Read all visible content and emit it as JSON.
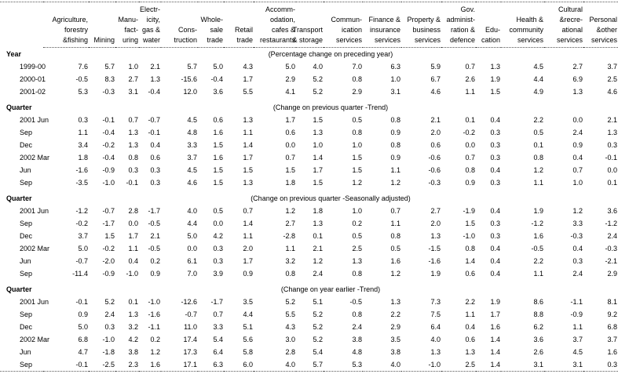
{
  "table": {
    "columns": [
      {
        "id": "agriculture-forestry-fishing",
        "label": "Agriculture,\nforestry\n&fishing"
      },
      {
        "id": "mining",
        "label": "Mining"
      },
      {
        "id": "manufacturing",
        "label": "Manu-\nfact-\nuring"
      },
      {
        "id": "electricity-gas-water",
        "label": "Electr-\nicity,\ngas &\nwater"
      },
      {
        "id": "construction",
        "label": "Cons-\ntruction"
      },
      {
        "id": "wholesale-trade",
        "label": "Whole-\nsale\ntrade"
      },
      {
        "id": "retail-trade",
        "label": "Retail\ntrade"
      },
      {
        "id": "accommodation-cafes-restaurants",
        "label": "Accomm-\nodation,\ncafes &\nrestaurants"
      },
      {
        "id": "transport-storage",
        "label": "Transport\n& storage"
      },
      {
        "id": "communication-services",
        "label": "Commun-\nication\nservices"
      },
      {
        "id": "finance-insurance-services",
        "label": "Finance &\ninsurance\nservices"
      },
      {
        "id": "property-business-services",
        "label": "Property &\nbusiness\nservices"
      },
      {
        "id": "gov-administration-defence",
        "label": "Gov.\nadminist-\nration &\ndefence"
      },
      {
        "id": "education",
        "label": "Edu-\ncation"
      },
      {
        "id": "health-community-services",
        "label": "Health &\ncommunity\nservices"
      },
      {
        "id": "cultural-recreational-services",
        "label": "Cultural\n&recre-\national\nservices"
      },
      {
        "id": "personal-other-services",
        "label": "Personal\n&other\nservices"
      }
    ],
    "sections": [
      {
        "label": "Year",
        "subtitle": "(Percentage change on preceding year)",
        "rows": [
          {
            "label": "1999-00",
            "values": [
              "7.6",
              "5.7",
              "1.0",
              "2.1",
              "5.7",
              "5.0",
              "4.3",
              "5.0",
              "4.0",
              "7.0",
              "6.3",
              "5.9",
              "0.7",
              "1.3",
              "4.5",
              "2.7",
              "3.7"
            ]
          },
          {
            "label": "2000-01",
            "values": [
              "-0.5",
              "8.3",
              "2.7",
              "1.3",
              "-15.6",
              "-0.4",
              "1.7",
              "2.9",
              "5.2",
              "0.8",
              "1.0",
              "6.7",
              "2.6",
              "1.9",
              "4.4",
              "6.9",
              "2.5"
            ]
          },
          {
            "label": "2001-02",
            "values": [
              "5.3",
              "-0.3",
              "3.1",
              "-0.4",
              "12.0",
              "3.6",
              "5.5",
              "4.1",
              "5.2",
              "2.9",
              "3.1",
              "4.6",
              "1.1",
              "1.5",
              "4.9",
              "1.3",
              "4.6"
            ]
          }
        ]
      },
      {
        "label": "Quarter",
        "subtitle": "(Change on previous quarter -Trend)",
        "rows": [
          {
            "label": "2001 Jun",
            "values": [
              "0.3",
              "-0.1",
              "0.7",
              "-0.7",
              "4.5",
              "0.6",
              "1.3",
              "1.7",
              "1.5",
              "0.5",
              "0.8",
              "2.1",
              "0.1",
              "0.4",
              "2.2",
              "0.0",
              "2.1"
            ]
          },
          {
            "label": "Sep",
            "values": [
              "1.1",
              "-0.4",
              "1.3",
              "-0.1",
              "4.8",
              "1.6",
              "1.1",
              "0.6",
              "1.3",
              "0.8",
              "0.9",
              "2.0",
              "-0.2",
              "0.3",
              "0.5",
              "2.4",
              "1.3"
            ]
          },
          {
            "label": "Dec",
            "values": [
              "3.4",
              "-0.2",
              "1.3",
              "0.4",
              "3.3",
              "1.5",
              "1.4",
              "0.0",
              "1.0",
              "1.0",
              "0.8",
              "0.6",
              "0.0",
              "0.3",
              "0.1",
              "0.9",
              "0.3"
            ]
          },
          {
            "label": "2002 Mar",
            "values": [
              "1.8",
              "-0.4",
              "0.8",
              "0.6",
              "3.7",
              "1.6",
              "1.7",
              "0.7",
              "1.4",
              "1.5",
              "0.9",
              "-0.6",
              "0.7",
              "0.3",
              "0.8",
              "0.4",
              "-0.1"
            ]
          },
          {
            "label": "Jun",
            "values": [
              "-1.6",
              "-0.9",
              "0.3",
              "0.3",
              "4.5",
              "1.5",
              "1.5",
              "1.5",
              "1.7",
              "1.5",
              "1.1",
              "-0.6",
              "0.8",
              "0.4",
              "1.2",
              "0.7",
              "0.0"
            ]
          },
          {
            "label": "Sep",
            "values": [
              "-3.5",
              "-1.0",
              "-0.1",
              "0.3",
              "4.6",
              "1.5",
              "1.3",
              "1.8",
              "1.5",
              "1.2",
              "1.2",
              "-0.3",
              "0.9",
              "0.3",
              "1.1",
              "1.0",
              "0.1"
            ]
          }
        ]
      },
      {
        "label": "Quarter",
        "subtitle": "(Change on previous quarter -Seasonally adjusted)",
        "rows": [
          {
            "label": "2001 Jun",
            "values": [
              "-1.2",
              "-0.7",
              "2.8",
              "-1.7",
              "4.0",
              "0.5",
              "0.7",
              "1.2",
              "1.8",
              "1.0",
              "0.7",
              "2.7",
              "-1.9",
              "0.4",
              "1.9",
              "1.2",
              "3.6"
            ]
          },
          {
            "label": "Sep",
            "values": [
              "-0.2",
              "-1.7",
              "0.0",
              "-0.5",
              "4.4",
              "0.0",
              "1.4",
              "2.7",
              "1.3",
              "0.2",
              "1.1",
              "2.0",
              "1.5",
              "0.3",
              "-1.2",
              "3.3",
              "-1.2"
            ]
          },
          {
            "label": "Dec",
            "values": [
              "3.7",
              "1.5",
              "1.7",
              "2.1",
              "5.0",
              "4.2",
              "1.1",
              "-2.8",
              "0.1",
              "0.5",
              "0.8",
              "1.3",
              "-1.0",
              "0.3",
              "1.6",
              "-0.3",
              "2.4"
            ]
          },
          {
            "label": "2002 Mar",
            "values": [
              "5.0",
              "-0.2",
              "1.1",
              "-0.5",
              "0.0",
              "0.3",
              "2.0",
              "1.1",
              "2.1",
              "2.5",
              "0.5",
              "-1.5",
              "0.8",
              "0.4",
              "-0.5",
              "0.4",
              "-0.3"
            ]
          },
          {
            "label": "Jun",
            "values": [
              "-0.7",
              "-2.0",
              "0.4",
              "0.2",
              "6.1",
              "0.3",
              "1.7",
              "3.2",
              "1.2",
              "1.3",
              "1.6",
              "-1.6",
              "1.4",
              "0.4",
              "2.2",
              "0.3",
              "-2.1"
            ]
          },
          {
            "label": "Sep",
            "values": [
              "-11.4",
              "-0.9",
              "-1.0",
              "0.9",
              "7.0",
              "3.9",
              "0.9",
              "0.8",
              "2.4",
              "0.8",
              "1.2",
              "1.9",
              "0.6",
              "0.4",
              "1.1",
              "2.4",
              "2.9"
            ]
          }
        ]
      },
      {
        "label": "Quarter",
        "subtitle": "(Change on year earlier -Trend)",
        "rows": [
          {
            "label": "2001 Jun",
            "values": [
              "-0.1",
              "5.2",
              "0.1",
              "-1.0",
              "-12.6",
              "-1.7",
              "3.5",
              "5.2",
              "5.1",
              "-0.5",
              "1.3",
              "7.3",
              "2.2",
              "1.9",
              "8.6",
              "-1.1",
              "8.1"
            ]
          },
          {
            "label": "Sep",
            "values": [
              "0.9",
              "2.4",
              "1.3",
              "-1.6",
              "-0.7",
              "0.7",
              "4.4",
              "5.5",
              "5.2",
              "0.8",
              "2.2",
              "7.5",
              "1.1",
              "1.7",
              "8.8",
              "-0.9",
              "9.2"
            ]
          },
          {
            "label": "Dec",
            "values": [
              "5.0",
              "0.3",
              "3.2",
              "-1.1",
              "11.0",
              "3.3",
              "5.1",
              "4.3",
              "5.2",
              "2.4",
              "2.9",
              "6.4",
              "0.4",
              "1.6",
              "6.2",
              "1.1",
              "6.8"
            ]
          },
          {
            "label": "2002 Mar",
            "values": [
              "6.8",
              "-1.0",
              "4.2",
              "0.2",
              "17.4",
              "5.4",
              "5.6",
              "3.0",
              "5.2",
              "3.8",
              "3.5",
              "4.0",
              "0.6",
              "1.4",
              "3.6",
              "3.7",
              "3.7"
            ]
          },
          {
            "label": "Jun",
            "values": [
              "4.7",
              "-1.8",
              "3.8",
              "1.2",
              "17.3",
              "6.4",
              "5.8",
              "2.8",
              "5.4",
              "4.8",
              "3.8",
              "1.3",
              "1.3",
              "1.4",
              "2.6",
              "4.5",
              "1.6"
            ]
          },
          {
            "label": "Sep",
            "values": [
              "-0.1",
              "-2.5",
              "2.3",
              "1.6",
              "17.1",
              "6.3",
              "6.0",
              "4.0",
              "5.7",
              "5.3",
              "4.0",
              "-1.0",
              "2.5",
              "1.4",
              "3.1",
              "3.1",
              "0.3"
            ]
          }
        ]
      }
    ]
  }
}
